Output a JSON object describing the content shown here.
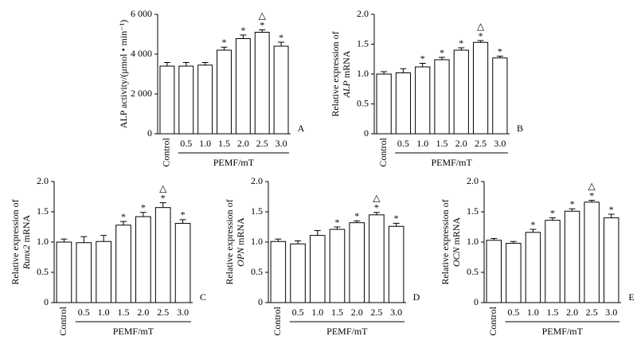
{
  "chart_data": [
    {
      "type": "bar",
      "panel": "A",
      "ylabel": "ALP activity/(μmol • min⁻¹)",
      "xlabel": "PEMF/mT",
      "categories": [
        "Control",
        "0.5",
        "1.0",
        "1.5",
        "2.0",
        "2.5",
        "3.0"
      ],
      "values": [
        3400,
        3400,
        3450,
        4200,
        4780,
        5100,
        4400
      ],
      "errors": [
        180,
        180,
        130,
        150,
        180,
        120,
        200
      ],
      "stars": [
        null,
        null,
        null,
        "*",
        "*",
        "*",
        "*"
      ],
      "triangles": [
        null,
        null,
        null,
        null,
        null,
        "△",
        null
      ],
      "ylim": [
        0,
        6000
      ],
      "yticks": [
        0,
        {
          "value": 2000,
          "label": "2 000"
        },
        {
          "value": 4000,
          "label": "4 000"
        },
        {
          "value": 6000,
          "label": "6 000"
        }
      ],
      "color": "#ffffff"
    },
    {
      "type": "bar",
      "panel": "B",
      "ylabel": "Relative expression of",
      "gene": "ALP",
      "ylabel_suffix": "mRNA",
      "xlabel": "PEMF/mT",
      "categories": [
        "Control",
        "0.5",
        "1.0",
        "1.5",
        "2.0",
        "2.5",
        "3.0"
      ],
      "values": [
        1.0,
        1.02,
        1.12,
        1.24,
        1.4,
        1.53,
        1.27
      ],
      "errors": [
        0.04,
        0.07,
        0.06,
        0.04,
        0.04,
        0.03,
        0.03
      ],
      "stars": [
        null,
        null,
        "*",
        "*",
        "*",
        "*",
        "*"
      ],
      "triangles": [
        null,
        null,
        null,
        null,
        null,
        "△",
        null
      ],
      "ylim": [
        0,
        2.0
      ],
      "yticks": [
        0,
        0.5,
        {
          "value": 1.0,
          "label": "1.0"
        },
        1.5,
        {
          "value": 2.0,
          "label": "2.0"
        }
      ],
      "color": "#ffffff"
    },
    {
      "type": "bar",
      "panel": "C",
      "ylabel": "Relative expression of",
      "gene": "Runx2",
      "ylabel_suffix": "mRNA",
      "xlabel": "PEMF/mT",
      "categories": [
        "Control",
        "0.5",
        "1.0",
        "1.5",
        "2.0",
        "2.5",
        "3.0"
      ],
      "values": [
        1.0,
        0.99,
        1.01,
        1.28,
        1.42,
        1.57,
        1.31
      ],
      "errors": [
        0.05,
        0.1,
        0.1,
        0.06,
        0.07,
        0.08,
        0.06
      ],
      "stars": [
        null,
        null,
        null,
        "*",
        "*",
        "*",
        "*"
      ],
      "triangles": [
        null,
        null,
        null,
        null,
        null,
        "△",
        null
      ],
      "ylim": [
        0,
        2.0
      ],
      "yticks": [
        0,
        0.5,
        {
          "value": 1.0,
          "label": "1.0"
        },
        1.5,
        {
          "value": 2.0,
          "label": "2.0"
        }
      ],
      "color": "#ffffff"
    },
    {
      "type": "bar",
      "panel": "D",
      "ylabel": "Relative expression of",
      "gene": "OPN",
      "ylabel_suffix": "mRNA",
      "xlabel": "PEMF/mT",
      "categories": [
        "Control",
        "0.5",
        "1.0",
        "1.5",
        "2.0",
        "2.5",
        "3.0"
      ],
      "values": [
        1.01,
        0.97,
        1.11,
        1.21,
        1.32,
        1.45,
        1.26
      ],
      "errors": [
        0.04,
        0.05,
        0.08,
        0.04,
        0.03,
        0.04,
        0.05
      ],
      "stars": [
        null,
        null,
        null,
        "*",
        "*",
        "*",
        "*"
      ],
      "triangles": [
        null,
        null,
        null,
        null,
        null,
        "△",
        null
      ],
      "ylim": [
        0,
        2.0
      ],
      "yticks": [
        0,
        0.5,
        {
          "value": 1.0,
          "label": "1.0"
        },
        1.5,
        {
          "value": 2.0,
          "label": "2.0"
        }
      ],
      "color": "#ffffff"
    },
    {
      "type": "bar",
      "panel": "E",
      "ylabel": "Relative expression of",
      "gene": "OCN",
      "ylabel_suffix": "mRNA",
      "xlabel": "PEMF/mT",
      "categories": [
        "Control",
        "0.5",
        "1.0",
        "1.5",
        "2.0",
        "2.5",
        "3.0"
      ],
      "values": [
        1.03,
        0.98,
        1.16,
        1.36,
        1.51,
        1.66,
        1.4
      ],
      "errors": [
        0.03,
        0.03,
        0.05,
        0.04,
        0.04,
        0.03,
        0.06
      ],
      "stars": [
        null,
        null,
        "*",
        "*",
        "*",
        "*",
        "*"
      ],
      "triangles": [
        null,
        null,
        null,
        null,
        null,
        "△",
        null
      ],
      "ylim": [
        0,
        2.0
      ],
      "yticks": [
        0,
        0.5,
        {
          "value": 1.0,
          "label": "1.0"
        },
        1.5,
        {
          "value": 2.0,
          "label": "2.0"
        }
      ],
      "color": "#ffffff"
    }
  ]
}
